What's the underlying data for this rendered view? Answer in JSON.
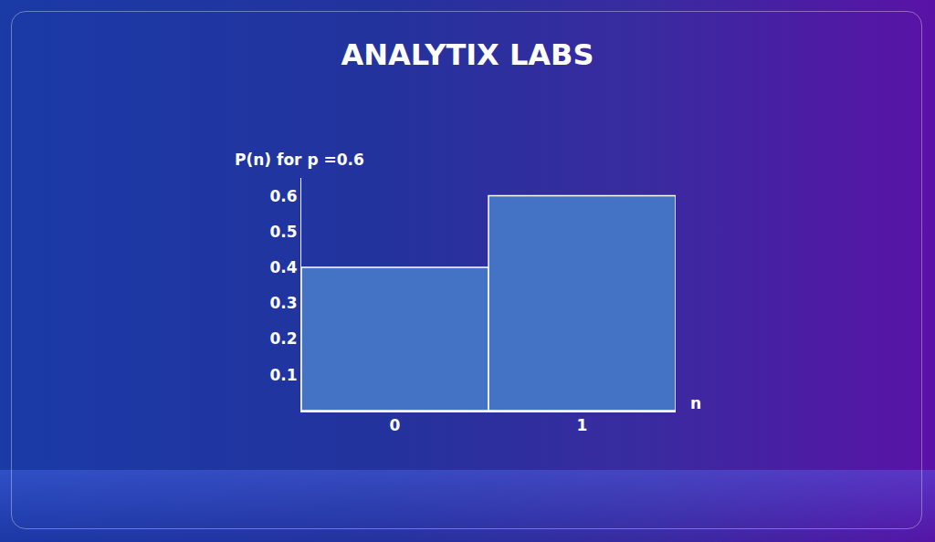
{
  "chart_data": {
    "type": "bar",
    "title": "ANALYTIX LABS",
    "x_label": "n",
    "y_label": "P(n) for p =0.6",
    "categories": [
      "0",
      "1"
    ],
    "values": [
      0.4,
      0.6
    ],
    "color": "#4472c4",
    "ylim": [
      0,
      0.65
    ],
    "yticks": [
      0.1,
      0.2,
      0.3,
      0.4,
      0.5,
      0.6
    ],
    "grid": false
  }
}
